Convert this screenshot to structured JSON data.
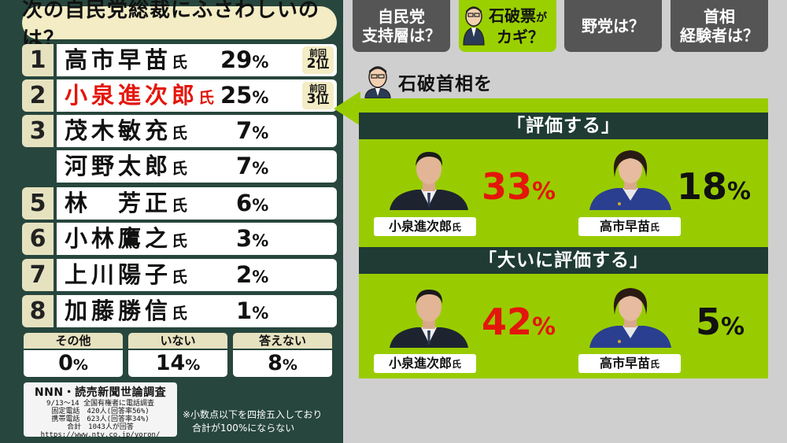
{
  "title": "次の自民党総裁にふさわしいのは？",
  "ranking": [
    {
      "rank": "1",
      "name": "高市早苗",
      "suffix": "氏",
      "pct": "29",
      "prev": "前回",
      "prev_rank": "2位"
    },
    {
      "rank": "2",
      "name": "小泉進次郎",
      "suffix": "氏",
      "pct": "25",
      "prev": "前回",
      "prev_rank": "3位"
    },
    {
      "rank": "3",
      "name": "茂木敏充",
      "suffix": "氏",
      "pct": "7"
    },
    {
      "rank": "",
      "name": "河野太郎",
      "suffix": "氏",
      "pct": "7"
    },
    {
      "rank": "5",
      "name": "林　芳正",
      "suffix": "氏",
      "pct": "6"
    },
    {
      "rank": "6",
      "name": "小林鷹之",
      "suffix": "氏",
      "pct": "3"
    },
    {
      "rank": "7",
      "name": "上川陽子",
      "suffix": "氏",
      "pct": "2"
    },
    {
      "rank": "8",
      "name": "加藤勝信",
      "suffix": "氏",
      "pct": "1"
    }
  ],
  "percent_sign": "%",
  "others": [
    {
      "label": "その他",
      "value": "0"
    },
    {
      "label": "いない",
      "value": "14"
    },
    {
      "label": "答えない",
      "value": "8"
    }
  ],
  "source": {
    "title": "NNN・読売新聞世論調査",
    "lines": [
      "9/13～14 全国有権者に電話調査",
      "固定電話　420人(回答率56%)",
      "携帯電話　623人(回答率34%)",
      "合計　1043人が回答",
      "https://www.ntv.co.jp/yoron/"
    ]
  },
  "note_lines": [
    "※小数点以下を四捨五入しており",
    "合計が100%にならない"
  ],
  "tabs": [
    {
      "label1": "自民党",
      "label2": "支持層は？",
      "active": false
    },
    {
      "label1": "石破票",
      "label_small": "が",
      "label2": "カギ？",
      "active": true
    },
    {
      "label1": "野党は？",
      "label2": "",
      "active": false
    },
    {
      "label1": "首相",
      "label2": "経験者は？",
      "active": false
    }
  ],
  "section_header": "石破首相を",
  "evaluations": [
    {
      "heading": "「評価する」",
      "people": [
        {
          "name": "小泉進次郎",
          "suffix": "氏",
          "pct": "33",
          "color": "#e3160b"
        },
        {
          "name": "高市早苗",
          "suffix": "氏",
          "pct": "18",
          "color": "#111111"
        }
      ]
    },
    {
      "heading": "「大いに評価する」",
      "people": [
        {
          "name": "小泉進次郎",
          "suffix": "氏",
          "pct": "42",
          "color": "#e3160b"
        },
        {
          "name": "高市早苗",
          "suffix": "氏",
          "pct": "5",
          "color": "#111111"
        }
      ]
    }
  ],
  "colors": {
    "accent_red": "#e3160b",
    "panel_green": "#99cc00",
    "dark_green": "#27463d",
    "cream": "#f3ecc4"
  },
  "icons": [
    "ishiba-portrait-icon",
    "koizumi-photo",
    "takaichi-photo"
  ]
}
